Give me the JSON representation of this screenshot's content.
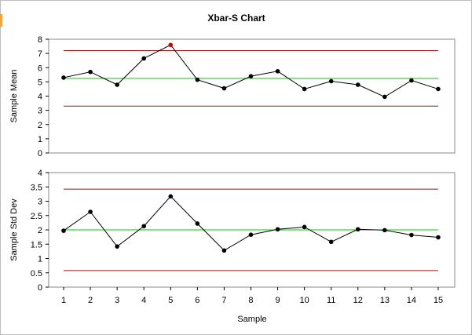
{
  "title": "Xbar-S Chart",
  "xlabel": "Sample",
  "colors": {
    "line": "#000000",
    "point": "#000000",
    "out_of_control": "#cc0000",
    "center": "#00cc00",
    "limit": "#a31515",
    "plot_border": "#888888"
  },
  "chart_data": [
    {
      "type": "line",
      "name": "xbar",
      "ylabel": "Sample Mean",
      "x": [
        1,
        2,
        3,
        4,
        5,
        6,
        7,
        8,
        9,
        10,
        11,
        12,
        13,
        14,
        15
      ],
      "values": [
        5.3,
        5.7,
        4.8,
        6.65,
        7.6,
        5.15,
        4.55,
        5.4,
        5.75,
        4.5,
        5.05,
        4.8,
        3.95,
        5.1,
        4.5
      ],
      "out_of_control": [
        5
      ],
      "center": 5.25,
      "ucl": 7.2,
      "lcl": 3.3,
      "ylim": [
        0,
        8
      ],
      "yticks": [
        "0",
        "1",
        "2",
        "3",
        "4",
        "5",
        "6",
        "7",
        "8"
      ],
      "xticks": []
    },
    {
      "type": "line",
      "name": "s",
      "ylabel": "Sample Std Dev",
      "x": [
        1,
        2,
        3,
        4,
        5,
        6,
        7,
        8,
        9,
        10,
        11,
        12,
        13,
        14,
        15
      ],
      "values": [
        1.97,
        2.63,
        1.42,
        2.13,
        3.17,
        2.22,
        1.28,
        1.83,
        2.02,
        2.1,
        1.58,
        2.02,
        1.99,
        1.82,
        1.74
      ],
      "out_of_control": [],
      "center": 2.0,
      "ucl": 3.42,
      "lcl": 0.58,
      "ylim": [
        0,
        4
      ],
      "yticks": [
        "0",
        "0.5",
        "1",
        "1.5",
        "2",
        "2.5",
        "3",
        "3.5",
        "4"
      ],
      "xticks": [
        "1",
        "2",
        "3",
        "4",
        "5",
        "6",
        "7",
        "8",
        "9",
        "10",
        "11",
        "12",
        "13",
        "14",
        "15"
      ]
    }
  ]
}
